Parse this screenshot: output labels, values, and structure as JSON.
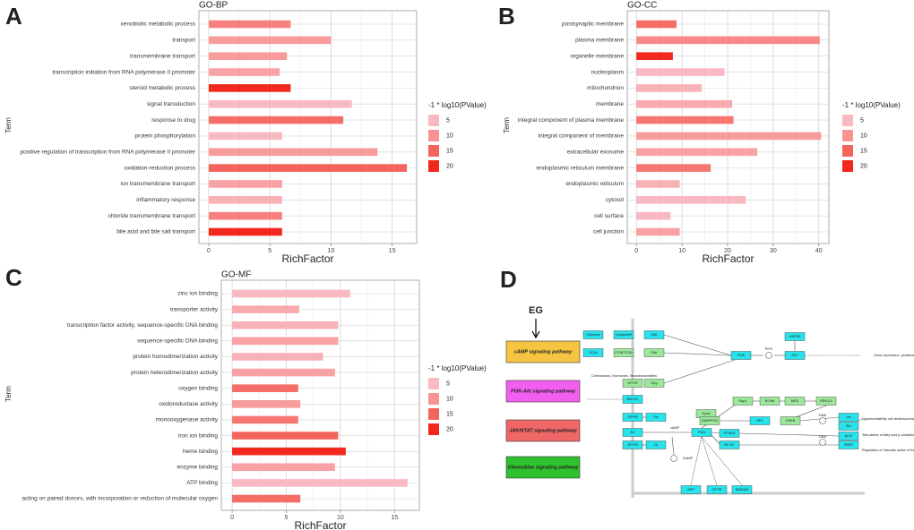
{
  "panel_labels": [
    "A",
    "B",
    "C",
    "D"
  ],
  "chart_data": [
    {
      "type": "bar",
      "orientation": "horizontal",
      "title": "GO-BP",
      "x_label": "RichFactor",
      "y_label": "Term",
      "grid": true,
      "categories": [
        "xenobiotic metabolic process",
        "transport",
        "transmembrane transport",
        "transcription initiation from RNA polymerase II promoter",
        "steroid metabolic process",
        "signal transduction",
        "response to drug",
        "protein phosphorylation",
        "positive regulation of transcription from RNA polymerase II promoter",
        "oxidation-reduction process",
        "ion transmembrane transport",
        "inflammatory response",
        "chloride transmembrane transport",
        "bile acid and bile salt transport"
      ],
      "values": [
        6.7,
        10,
        6.4,
        5.8,
        6.7,
        11.7,
        11,
        6,
        13.8,
        16.2,
        6,
        6,
        6,
        6
      ],
      "color_values": [
        12,
        9,
        9,
        8,
        20,
        5,
        14,
        5,
        9,
        15,
        8,
        6,
        12,
        20
      ],
      "xlim": [
        -0.8,
        17
      ],
      "xticks": [
        0,
        5,
        10,
        15
      ],
      "legend": {
        "title": "-1 * log10(PValue)",
        "values": [
          5,
          10,
          15,
          20
        ],
        "colors": [
          "#f9b9c1",
          "#f79393",
          "#f5645c",
          "#f2281e"
        ]
      }
    },
    {
      "type": "bar",
      "orientation": "horizontal",
      "title": "GO-CC",
      "x_label": "RichFactor",
      "y_label": "Term",
      "grid": true,
      "categories": [
        "postsynaptic membrane",
        "plasma membrane",
        "organelle membrane",
        "nucleoplasm",
        "mitochondrion",
        "membrane",
        "integral component of plasma membrane",
        "integral component of membrane",
        "extracellular exosome",
        "endoplasmic reticulum membrane",
        "endoplasmic reticulum",
        "cytosol",
        "cell surface",
        "cell junction"
      ],
      "values": [
        8.8,
        40.2,
        8,
        19.3,
        14.3,
        21,
        21.3,
        40.5,
        26.5,
        16.3,
        9.5,
        24,
        7.5,
        9.5
      ],
      "color_values": [
        14,
        11,
        20,
        5,
        6,
        7,
        13,
        9,
        8,
        13,
        6,
        5,
        5,
        8
      ],
      "xlim": [
        -2,
        42.2
      ],
      "xticks": [
        0,
        10,
        20,
        30,
        40
      ],
      "legend": {
        "title": "-1 * log10(PValue)",
        "values": [
          5,
          10,
          15,
          20
        ],
        "colors": [
          "#f9b9c1",
          "#f79393",
          "#f5645c",
          "#f2281e"
        ]
      }
    },
    {
      "type": "bar",
      "orientation": "horizontal",
      "title": "GO-MF",
      "x_label": "RichFactor",
      "y_label": "Term",
      "grid": true,
      "categories": [
        "zinc ion binding",
        "transporter activity",
        "transcription factor activity, sequence-specific DNA binding",
        "sequence-specific DNA binding",
        "protein homodimerization activity",
        "protein heterodimerization activity",
        "oxygen binding",
        "oxidoreductase activity",
        "monooxygenase activity",
        "iron ion binding",
        "heme binding",
        "enzyme binding",
        "ATP binding",
        "acting on paired donors, with incorporation or reduction of molecular oxygen"
      ],
      "values": [
        10.9,
        6.2,
        9.8,
        9.8,
        8.4,
        9.5,
        6.1,
        6.3,
        6.1,
        9.8,
        10.5,
        9.5,
        16.2,
        6.3
      ],
      "color_values": [
        5,
        7,
        6,
        8,
        6,
        8,
        14,
        9,
        13,
        15,
        20,
        8,
        5,
        14
      ],
      "xlim": [
        -1,
        17.3
      ],
      "xticks": [
        0,
        5,
        10,
        15
      ],
      "legend": {
        "title": "-1 * log10(PValue)",
        "values": [
          5,
          10,
          15,
          20
        ],
        "colors": [
          "#f9b9c1",
          "#f79393",
          "#f5645c",
          "#f2281e"
        ]
      }
    }
  ],
  "diagram": {
    "input": "EG",
    "pathways": [
      {
        "label": "cAMP signaling pathway",
        "color": "#f5c542"
      },
      {
        "label": "PI3K-Akt signaling pathway",
        "color": "#f25ff0"
      },
      {
        "label": "JAK/STAT signaling pathway",
        "color": "#ef6767"
      },
      {
        "label": "Chemokine signaling pathway",
        "color": "#2fc12f"
      }
    ],
    "nodes": [
      {
        "label": "Cytokine",
        "color": "#27e3ec"
      },
      {
        "label": "CytokineR",
        "color": "#27e3ec"
      },
      {
        "label": "JAK",
        "color": "#27e3ec"
      },
      {
        "label": "ECM",
        "color": "#27e3ec"
      },
      {
        "label": "ITGB ITGA",
        "color": "#9be89b"
      },
      {
        "label": "FAK",
        "color": "#9be89b"
      },
      {
        "label": "PI3K",
        "color": "#27e3ec"
      },
      {
        "label": "AKT",
        "color": "#27e3ec"
      },
      {
        "label": "HSP90",
        "color": "#27e3ec"
      },
      {
        "label": "GPCR",
        "color": "#9be89b"
      },
      {
        "label": "Gβγ",
        "color": "#9be89b"
      },
      {
        "label": "RBCK1",
        "color": "#27e3ec"
      },
      {
        "label": "GPVR",
        "color": "#27e3ec"
      },
      {
        "label": "Gs",
        "color": "#27e3ec"
      },
      {
        "label": "AC",
        "color": "#27e3ec"
      },
      {
        "label": "GPCR",
        "color": "#27e3ec"
      },
      {
        "label": "Gi",
        "color": "#27e3ec"
      },
      {
        "label": "PKA",
        "color": "#27e3ec"
      },
      {
        "label": "Epac",
        "color": "#9be89b"
      },
      {
        "label": "Rap1",
        "color": "#9be89b"
      },
      {
        "label": "B-Raf",
        "color": "#9be89b"
      },
      {
        "label": "MEK",
        "color": "#9be89b"
      },
      {
        "label": "ERK1/2",
        "color": "#9be89b"
      },
      {
        "label": "DARPP32",
        "color": "#9be89b"
      },
      {
        "label": "PP1",
        "color": "#27e3ec"
      },
      {
        "label": "CREB",
        "color": "#9be89b"
      },
      {
        "label": "PPARα",
        "color": "#27e3ec"
      },
      {
        "label": "NF-AT",
        "color": "#27e3ec"
      },
      {
        "label": "Ins",
        "color": "#27e3ec"
      },
      {
        "label": "Bcl",
        "color": "#27e3ec"
      },
      {
        "label": "ACO",
        "color": "#27e3ec"
      },
      {
        "label": "PAR1",
        "color": "#27e3ec"
      },
      {
        "label": "APP",
        "color": "#27e3ec"
      },
      {
        "label": "CFTR",
        "color": "#27e3ec"
      },
      {
        "label": "NMDAR",
        "color": "#27e3ec"
      }
    ],
    "notes": [
      "PIP3",
      "Gene expression, proliferation",
      "Chemokines, Hormones, Neurotransmitters",
      "cAMP",
      "5'AMP",
      "DNA",
      "DNA",
      "Hyperexcitability cell death/survival",
      "Stimulation of fatty acid β-oxidation",
      "Regulation of Vascular action of thrombin"
    ]
  }
}
